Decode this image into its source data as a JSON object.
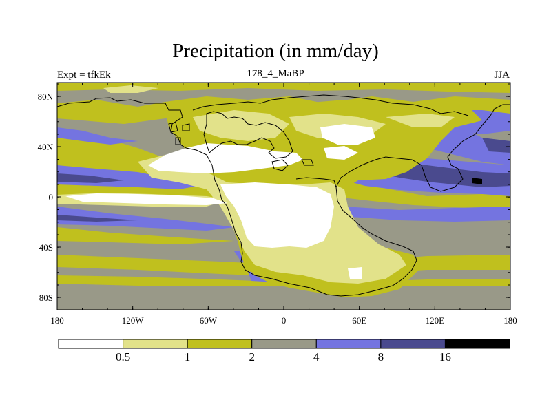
{
  "title": "Precipitation (in mm/day)",
  "subtitle_left": "Expt = tfkEk",
  "subtitle_center": "178_4_MaBP",
  "subtitle_right": "JJA",
  "lat_ticks": [
    "80N",
    "40N",
    "0",
    "40S",
    "80S"
  ],
  "lon_ticks": [
    "180",
    "120W",
    "60W",
    "0",
    "60E",
    "120E",
    "180"
  ],
  "colorbar": {
    "colors": [
      "#ffffff",
      "#e2e28a",
      "#c0c01e",
      "#999988",
      "#7474e0",
      "#4a4a8e",
      "#000000"
    ],
    "labels": [
      "0.5",
      "1",
      "2",
      "4",
      "8",
      "16"
    ]
  }
}
